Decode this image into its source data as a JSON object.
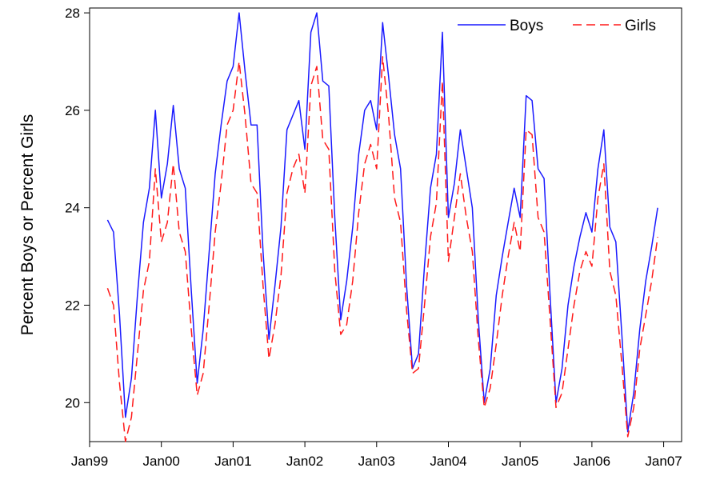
{
  "chart_data": {
    "type": "line",
    "title": "",
    "xlabel": "",
    "ylabel": "Percent Boys or Percent Girls",
    "x_ticks": [
      "Jan99",
      "Jan00",
      "Jan01",
      "Jan02",
      "Jan03",
      "Jan04",
      "Jan05",
      "Jan06",
      "Jan07"
    ],
    "ylim": [
      19.2,
      28.1
    ],
    "y_ticks": [
      20,
      22,
      24,
      26,
      28
    ],
    "grid": false,
    "legend_position": "top-right",
    "x": [
      "1999-04",
      "1999-05",
      "1999-06",
      "1999-07",
      "1999-08",
      "1999-09",
      "1999-10",
      "1999-11",
      "1999-12",
      "2000-01",
      "2000-02",
      "2000-03",
      "2000-04",
      "2000-05",
      "2000-06",
      "2000-07",
      "2000-08",
      "2000-09",
      "2000-10",
      "2000-11",
      "2000-12",
      "2001-01",
      "2001-02",
      "2001-03",
      "2001-04",
      "2001-05",
      "2001-06",
      "2001-07",
      "2001-08",
      "2001-09",
      "2001-10",
      "2001-11",
      "2001-12",
      "2002-01",
      "2002-02",
      "2002-03",
      "2002-04",
      "2002-05",
      "2002-06",
      "2002-07",
      "2002-08",
      "2002-09",
      "2002-10",
      "2002-11",
      "2002-12",
      "2003-01",
      "2003-02",
      "2003-03",
      "2003-04",
      "2003-05",
      "2003-06",
      "2003-07",
      "2003-08",
      "2003-09",
      "2003-10",
      "2003-11",
      "2003-12",
      "2004-01",
      "2004-02",
      "2004-03",
      "2004-04",
      "2004-05",
      "2004-06",
      "2004-07",
      "2004-08",
      "2004-09",
      "2004-10",
      "2004-11",
      "2004-12",
      "2005-01",
      "2005-02",
      "2005-03",
      "2005-04",
      "2005-05",
      "2005-06",
      "2005-07",
      "2005-08",
      "2005-09",
      "2005-10",
      "2005-11",
      "2005-12",
      "2006-01",
      "2006-02",
      "2006-03",
      "2006-04",
      "2006-05",
      "2006-06",
      "2006-07",
      "2006-08",
      "2006-09",
      "2006-10",
      "2006-11",
      "2006-12"
    ],
    "series": [
      {
        "name": "Boys",
        "color": "#1a1aff",
        "dash": "solid",
        "values": [
          23.75,
          23.5,
          21.8,
          19.7,
          20.5,
          22.2,
          23.7,
          24.4,
          26.0,
          24.2,
          24.9,
          26.1,
          24.8,
          24.4,
          22.3,
          20.4,
          21.5,
          23.1,
          24.7,
          25.7,
          26.6,
          26.9,
          28.0,
          26.8,
          25.7,
          25.7,
          23.1,
          21.3,
          22.4,
          23.6,
          25.6,
          25.9,
          26.2,
          25.2,
          27.6,
          28.0,
          26.6,
          26.5,
          23.8,
          21.7,
          22.5,
          23.6,
          25.1,
          26.0,
          26.2,
          25.6,
          27.8,
          26.7,
          25.5,
          24.8,
          22.4,
          20.7,
          21.0,
          22.8,
          24.4,
          25.1,
          27.6,
          23.8,
          24.5,
          25.6,
          24.8,
          24.0,
          21.7,
          20.0,
          20.7,
          22.2,
          23.0,
          23.7,
          24.4,
          23.8,
          26.3,
          26.2,
          24.8,
          24.6,
          22.2,
          20.0,
          20.7,
          22.0,
          22.8,
          23.4,
          23.9,
          23.5,
          24.8,
          25.6,
          23.6,
          23.3,
          21.4,
          19.4,
          20.2,
          21.5,
          22.5,
          23.2,
          24.0
        ]
      },
      {
        "name": "Girls",
        "color": "#ff1a1a",
        "dash": "dashed",
        "values": [
          22.35,
          22.0,
          20.4,
          19.2,
          19.7,
          21.0,
          22.3,
          22.9,
          24.8,
          23.3,
          23.7,
          24.9,
          23.5,
          23.1,
          21.5,
          20.15,
          20.6,
          22.0,
          23.5,
          24.5,
          25.7,
          26.0,
          27.0,
          25.9,
          24.5,
          24.3,
          22.4,
          20.9,
          21.6,
          22.6,
          24.3,
          24.8,
          25.1,
          24.3,
          26.5,
          26.9,
          25.4,
          25.2,
          22.7,
          21.4,
          21.6,
          22.5,
          23.9,
          24.9,
          25.3,
          24.8,
          27.1,
          25.9,
          24.2,
          23.7,
          21.9,
          20.6,
          20.7,
          22.0,
          23.4,
          24.1,
          26.6,
          22.9,
          23.8,
          24.7,
          23.8,
          23.1,
          21.3,
          19.9,
          20.3,
          21.2,
          22.2,
          23.0,
          23.7,
          23.1,
          25.6,
          25.5,
          23.8,
          23.5,
          21.7,
          19.9,
          20.2,
          21.1,
          22.0,
          22.7,
          23.1,
          22.8,
          24.2,
          24.9,
          22.7,
          22.2,
          20.8,
          19.3,
          19.9,
          21.1,
          21.8,
          22.5,
          23.4
        ]
      }
    ]
  }
}
